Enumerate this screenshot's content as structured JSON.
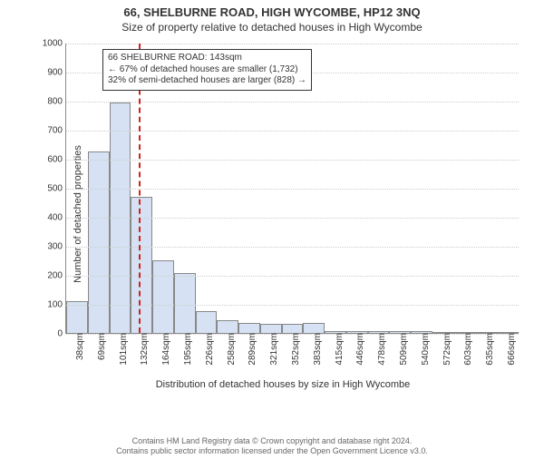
{
  "title_main": "66, SHELBURNE ROAD, HIGH WYCOMBE, HP12 3NQ",
  "title_sub": "Size of property relative to detached houses in High Wycombe",
  "chart": {
    "type": "histogram",
    "y_label": "Number of detached properties",
    "x_caption": "Distribution of detached houses by size in High Wycombe",
    "ylim": [
      0,
      1000
    ],
    "ytick_step": 100,
    "bar_fill": "#d6e2f3",
    "bar_border": "#888888",
    "grid_color": "#cccccc",
    "background": "#ffffff",
    "font_family": "Arial",
    "title_fontsize": 13,
    "label_fontsize": 11,
    "tick_fontsize": 10,
    "marker_color": "#d02020",
    "marker_value": 143,
    "categories": [
      "38sqm",
      "69sqm",
      "101sqm",
      "132sqm",
      "164sqm",
      "195sqm",
      "226sqm",
      "258sqm",
      "289sqm",
      "321sqm",
      "352sqm",
      "383sqm",
      "415sqm",
      "446sqm",
      "478sqm",
      "509sqm",
      "540sqm",
      "572sqm",
      "603sqm",
      "635sqm",
      "666sqm"
    ],
    "values": [
      110,
      625,
      795,
      470,
      250,
      205,
      75,
      45,
      35,
      30,
      30,
      35,
      5,
      5,
      5,
      5,
      5,
      3,
      3,
      3,
      3
    ]
  },
  "annotation": {
    "line1": "66 SHELBURNE ROAD: 143sqm",
    "line2": "← 67% of detached houses are smaller (1,732)",
    "line3": "32% of semi-detached houses are larger (828) →"
  },
  "footer": {
    "line1": "Contains HM Land Registry data © Crown copyright and database right 2024.",
    "line2": "Contains public sector information licensed under the Open Government Licence v3.0."
  }
}
